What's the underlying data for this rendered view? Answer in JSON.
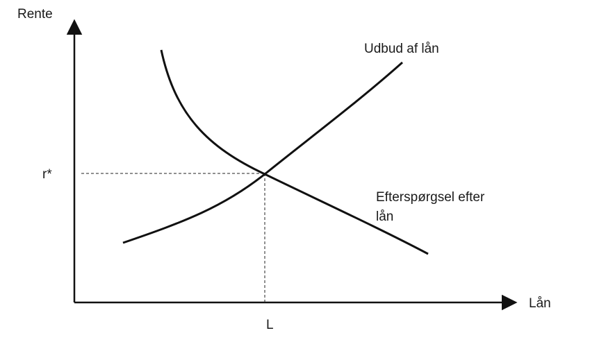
{
  "diagram": {
    "y_axis_label": "Rente",
    "x_axis_label": "Lån",
    "equilibrium_rate_label": "r*",
    "equilibrium_quantity_label": "L",
    "supply_curve_label": "Udbud af lån",
    "demand_curve_label_line1": "Efterspørgsel efter",
    "demand_curve_label_line2": "lån"
  },
  "colors": {
    "curve": "#111111",
    "axis": "#111111",
    "guide": "#222222"
  }
}
